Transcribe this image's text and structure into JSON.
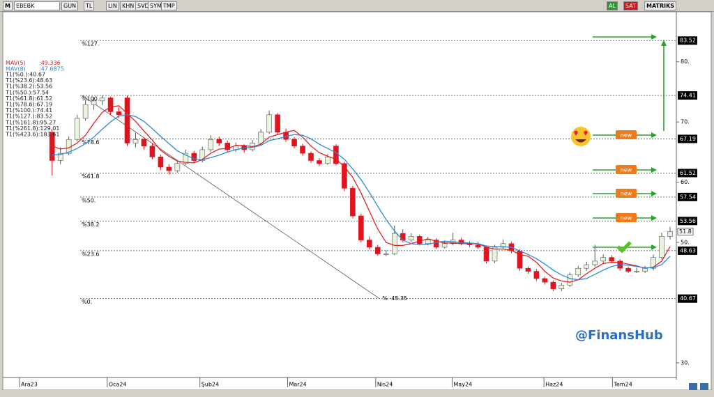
{
  "toolbar": {
    "items": [
      "M",
      "EBEBK",
      "GUN",
      "TL",
      "LIN",
      "KHN",
      "SVD",
      "SYM",
      "TMP",
      "AL",
      "SAT",
      "MATRIKS"
    ]
  },
  "annotations": {
    "badges": [
      "new",
      "new",
      "new",
      "new"
    ],
    "watermark": "@FinansHub"
  },
  "chart_data": {
    "type": "candlestick",
    "up_color": "#e8f5dc",
    "down_color": "#e0141e",
    "xlim": [
      -4.4,
      74.75
    ],
    "xticks": [
      {
        "value": -3.9,
        "label": "Ara23"
      },
      {
        "value": 6.6,
        "label": "Oca24"
      },
      {
        "value": 17.7,
        "label": "Şub24"
      },
      {
        "value": 28.2,
        "label": "Mar24"
      },
      {
        "value": 38.75,
        "label": "Nis24"
      },
      {
        "value": 47.9,
        "label": "May24"
      },
      {
        "value": 58.9,
        "label": "Haz24"
      },
      {
        "value": 67.1,
        "label": "Tem24"
      }
    ],
    "ylim": [
      27.8,
      89.1
    ],
    "yticks": [
      {
        "value": 80,
        "label": "80."
      },
      {
        "value": 70,
        "label": "70."
      },
      {
        "value": 60,
        "label": "60."
      },
      {
        "value": 50,
        "label": "50."
      },
      {
        "value": 30,
        "label": "30."
      }
    ],
    "last_price": 51.8,
    "fib_levels": [
      {
        "label": "%127.",
        "value": 83.52
      },
      {
        "label": "%100.",
        "value": 74.41
      },
      {
        "label": "%78.6",
        "value": 67.19
      },
      {
        "label": "%61.8",
        "value": 61.52
      },
      {
        "label": "%50.",
        "value": 57.54
      },
      {
        "label": "%38.2",
        "value": 53.56
      },
      {
        "label": "%23.6",
        "value": 48.63
      },
      {
        "label": "%0.",
        "value": 40.67
      }
    ],
    "indicator_lines": [
      "T1(%0.):40.67",
      "T1(%23.6):48.63",
      "T1(%38.2):53.56",
      "T1(%50.):57.54",
      "T1(%61.8):61.52",
      "T1(%78.6):67.19",
      "T1(%100.):74.41",
      "T1(%127.):83.52",
      "T1(%161.8):95.27",
      "T1(%261.8):129.01",
      "T1(%423.6):183.61"
    ],
    "trendline": {
      "x": [
        3.6,
        39.2
      ],
      "y": [
        74.41,
        40.67
      ],
      "label": "% -45.35",
      "color": "#555"
    },
    "ohlc": [
      [
        68.3,
        68.8,
        61.1,
        63.6
      ],
      [
        63.6,
        65.8,
        63.0,
        64.8
      ],
      [
        64.8,
        67.6,
        64.5,
        67.1
      ],
      [
        67.1,
        71.2,
        66.8,
        70.6
      ],
      [
        70.6,
        73.5,
        70.2,
        72.9
      ],
      [
        72.9,
        74.1,
        72.0,
        73.5
      ],
      [
        73.5,
        74.4,
        72.8,
        74.0
      ],
      [
        74.0,
        74.2,
        71.2,
        71.7
      ],
      [
        71.7,
        72.4,
        70.6,
        71.2
      ],
      [
        74.0,
        74.4,
        66.0,
        66.5
      ],
      [
        66.5,
        68.2,
        65.8,
        67.1
      ],
      [
        67.1,
        67.5,
        65.4,
        66.0
      ],
      [
        66.0,
        66.4,
        63.8,
        64.2
      ],
      [
        64.2,
        64.6,
        62.0,
        62.5
      ],
      [
        62.5,
        63.0,
        61.3,
        61.9
      ],
      [
        61.9,
        63.6,
        61.6,
        63.1
      ],
      [
        63.1,
        65.4,
        62.8,
        64.8
      ],
      [
        64.8,
        65.2,
        63.2,
        63.6
      ],
      [
        63.6,
        65.9,
        63.3,
        65.4
      ],
      [
        65.4,
        67.8,
        65.0,
        67.1
      ],
      [
        67.1,
        67.6,
        66.0,
        66.5
      ],
      [
        66.5,
        66.9,
        65.0,
        65.4
      ],
      [
        65.4,
        66.6,
        65.0,
        66.0
      ],
      [
        66.0,
        66.3,
        64.9,
        65.4
      ],
      [
        65.4,
        67.0,
        65.1,
        66.5
      ],
      [
        66.5,
        68.8,
        66.2,
        68.3
      ],
      [
        68.3,
        71.9,
        68.0,
        71.2
      ],
      [
        71.2,
        71.5,
        67.8,
        68.3
      ],
      [
        68.3,
        68.9,
        66.7,
        67.1
      ],
      [
        67.1,
        67.5,
        65.6,
        66.0
      ],
      [
        66.0,
        66.4,
        64.4,
        64.8
      ],
      [
        64.8,
        65.1,
        63.2,
        63.6
      ],
      [
        63.6,
        64.0,
        62.7,
        63.1
      ],
      [
        63.1,
        64.7,
        62.9,
        64.2
      ],
      [
        66.0,
        66.3,
        62.8,
        63.1
      ],
      [
        63.1,
        63.4,
        58.5,
        59.0
      ],
      [
        59.0,
        59.4,
        54.0,
        54.4
      ],
      [
        54.4,
        54.8,
        50.0,
        50.4
      ],
      [
        50.4,
        51.0,
        48.8,
        49.2
      ],
      [
        49.2,
        49.6,
        47.8,
        48.1
      ],
      [
        48.1,
        48.7,
        47.7,
        48.1
      ],
      [
        48.1,
        52.8,
        47.9,
        51.5
      ],
      [
        51.5,
        52.2,
        50.0,
        50.4
      ],
      [
        50.4,
        51.5,
        50.1,
        51.0
      ],
      [
        51.0,
        51.3,
        49.5,
        49.8
      ],
      [
        49.8,
        50.9,
        49.5,
        50.4
      ],
      [
        50.4,
        50.7,
        48.9,
        49.2
      ],
      [
        49.2,
        50.3,
        49.0,
        49.8
      ],
      [
        49.8,
        51.6,
        49.5,
        50.4
      ],
      [
        50.4,
        50.8,
        49.5,
        49.8
      ],
      [
        49.8,
        50.2,
        49.2,
        49.6
      ],
      [
        49.6,
        50.1,
        48.9,
        49.2
      ],
      [
        49.2,
        49.5,
        46.5,
        46.9
      ],
      [
        46.9,
        49.6,
        46.6,
        49.2
      ],
      [
        49.2,
        50.5,
        48.9,
        49.8
      ],
      [
        49.8,
        50.1,
        48.2,
        48.6
      ],
      [
        48.6,
        48.9,
        45.3,
        45.7
      ],
      [
        45.7,
        46.0,
        44.8,
        45.2
      ],
      [
        45.2,
        45.6,
        43.6,
        44.0
      ],
      [
        44.0,
        44.3,
        43.0,
        43.4
      ],
      [
        43.4,
        43.7,
        41.9,
        42.3
      ],
      [
        42.3,
        43.3,
        41.9,
        42.9
      ],
      [
        42.9,
        45.0,
        42.6,
        44.6
      ],
      [
        44.6,
        46.1,
        44.3,
        45.7
      ],
      [
        45.7,
        46.8,
        45.3,
        46.3
      ],
      [
        46.3,
        49.6,
        45.9,
        46.9
      ],
      [
        46.9,
        48.0,
        46.5,
        47.5
      ],
      [
        47.5,
        47.9,
        46.5,
        46.9
      ],
      [
        46.9,
        47.2,
        45.3,
        45.7
      ],
      [
        45.7,
        46.0,
        44.9,
        45.2
      ],
      [
        45.2,
        45.8,
        44.9,
        45.2
      ],
      [
        45.2,
        46.1,
        44.9,
        45.7
      ],
      [
        45.7,
        48.0,
        45.4,
        47.5
      ],
      [
        47.5,
        51.6,
        47.2,
        51.0
      ],
      [
        51.0,
        52.6,
        50.5,
        51.8
      ]
    ],
    "series": [
      {
        "name": "MAV(5)",
        "last_label": ":49.336",
        "color": "#e02020",
        "values": [
          66,
          65.5,
          65.7,
          66.5,
          67.8,
          69.8,
          71.6,
          72.5,
          72.7,
          71.4,
          70.1,
          68.5,
          67.0,
          65.3,
          64.3,
          63.5,
          63.3,
          63.2,
          63.8,
          64.8,
          65.5,
          65.6,
          66.1,
          66.1,
          65.9,
          66.3,
          67.5,
          67.9,
          68.3,
          68.6,
          67.5,
          66.0,
          64.9,
          64.3,
          63.8,
          62.6,
          60.8,
          58.2,
          55.2,
          52.2,
          50.0,
          49.5,
          49.5,
          49.8,
          50.2,
          50.6,
          50.2,
          49.9,
          49.9,
          49.8,
          49.8,
          49.8,
          49.2,
          48.9,
          48.9,
          48.7,
          48.0,
          47.7,
          46.7,
          45.2,
          44.1,
          43.6,
          43.4,
          43.8,
          44.8,
          45.7,
          46.5,
          46.7,
          46.7,
          46.4,
          46.1,
          45.7,
          45.9,
          46.9,
          49.3
        ]
      },
      {
        "name": "MAV(8)",
        "last_label": ":47.6875",
        "color": "#2a8ad8",
        "values": [
          64.5,
          64.6,
          65,
          65.6,
          66.4,
          67.5,
          68.8,
          70.0,
          71.0,
          71.2,
          70.9,
          70.1,
          68.9,
          67.6,
          66.4,
          65.2,
          64.5,
          63.9,
          63.7,
          64.1,
          64.5,
          65.0,
          65.4,
          65.7,
          65.8,
          66.1,
          66.9,
          67.2,
          67.6,
          67.9,
          67.8,
          67.2,
          66.3,
          65.6,
          64.9,
          63.8,
          62.2,
          60.4,
          58.3,
          56.0,
          53.8,
          51.9,
          50.4,
          49.8,
          49.6,
          49.7,
          50.0,
          50.2,
          50.1,
          50.0,
          49.9,
          49.8,
          49.4,
          49.3,
          49.3,
          49.2,
          48.6,
          48.0,
          47.3,
          46.4,
          45.4,
          44.6,
          44.0,
          43.8,
          44.0,
          44.7,
          45.4,
          46.0,
          46.3,
          46.2,
          46.0,
          45.8,
          45.8,
          46.3,
          47.7
        ]
      }
    ]
  }
}
